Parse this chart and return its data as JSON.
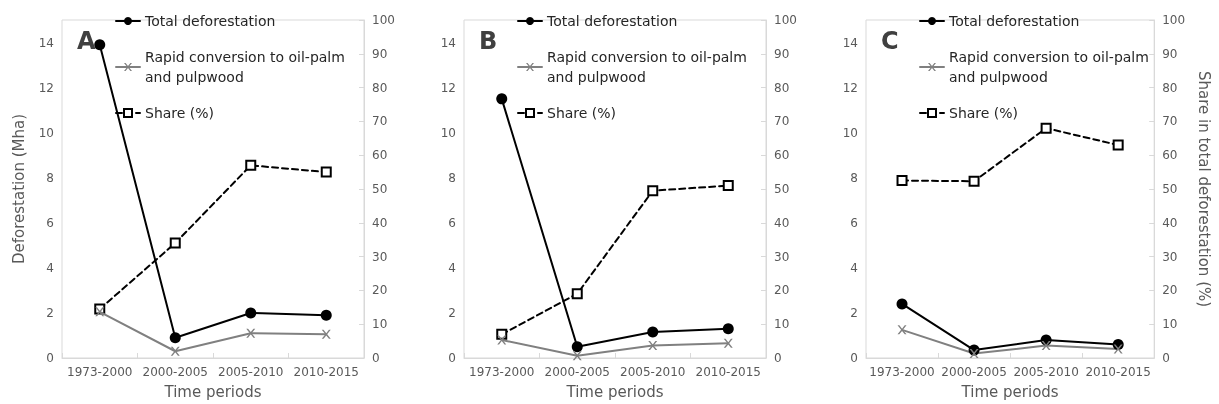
{
  "chart_data": [
    {
      "type": "line",
      "title": "A",
      "xlabel": "Time periods",
      "ylabel": "Deforestation (Mha)",
      "categories": [
        "1973-2000",
        "2000-2005",
        "2005-2010",
        "2010-2015"
      ],
      "legend": "top",
      "ylim": [
        0,
        15
      ],
      "yticks": [
        0,
        2,
        4,
        6,
        8,
        10,
        12,
        14
      ],
      "y2lim": [
        0,
        100
      ],
      "y2ticks": [
        0,
        10,
        20,
        30,
        40,
        50,
        60,
        70,
        80,
        90,
        100
      ],
      "series": [
        {
          "name": "Total deforestation",
          "color": "#000000",
          "marker": "circle",
          "line_style": "solid",
          "values": [
            13.9,
            0.9,
            2.0,
            1.9
          ]
        },
        {
          "name": "Rapid conversion to oil-palm and pulpwood",
          "color": "#808080",
          "marker": "cross",
          "line_style": "solid",
          "values": [
            2.05,
            0.3,
            1.1,
            1.05
          ]
        },
        {
          "name": "Share (%)",
          "color": "#000000",
          "marker": "square",
          "line_style": "dashed",
          "axis": "y2",
          "values": [
            14.5,
            34,
            57,
            55
          ]
        }
      ]
    },
    {
      "type": "line",
      "title": "B",
      "xlabel": "Time periods",
      "categories": [
        "1973-2000",
        "2000-2005",
        "2005-2010",
        "2010-2015"
      ],
      "legend": "top",
      "ylim": [
        0,
        15
      ],
      "yticks": [
        0,
        2,
        4,
        6,
        8,
        10,
        12,
        14
      ],
      "y2lim": [
        0,
        100
      ],
      "y2ticks": [
        0,
        10,
        20,
        30,
        40,
        50,
        60,
        70,
        80,
        90,
        100
      ],
      "series": [
        {
          "name": "Total deforestation",
          "color": "#000000",
          "marker": "circle",
          "line_style": "solid",
          "values": [
            11.5,
            0.5,
            1.15,
            1.3
          ]
        },
        {
          "name": "Rapid conversion to oil-palm and pulpwood",
          "color": "#808080",
          "marker": "cross",
          "line_style": "solid",
          "values": [
            0.8,
            0.1,
            0.55,
            0.65
          ]
        },
        {
          "name": "Share (%)",
          "color": "#000000",
          "marker": "square",
          "line_style": "dashed",
          "axis": "y2",
          "values": [
            7,
            19,
            49.5,
            51
          ]
        }
      ]
    },
    {
      "type": "line",
      "title": "C",
      "xlabel": "Time periods",
      "y2label": "Share in total deforestation (%)",
      "categories": [
        "1973-2000",
        "2000-2005",
        "2005-2010",
        "2010-2015"
      ],
      "legend": "top",
      "ylim": [
        0,
        15
      ],
      "yticks": [
        0,
        2,
        4,
        6,
        8,
        10,
        12,
        14
      ],
      "y2lim": [
        0,
        100
      ],
      "y2ticks": [
        0,
        10,
        20,
        30,
        40,
        50,
        60,
        70,
        80,
        90,
        100
      ],
      "series": [
        {
          "name": "Total deforestation",
          "color": "#000000",
          "marker": "circle",
          "line_style": "solid",
          "values": [
            2.4,
            0.35,
            0.8,
            0.6
          ]
        },
        {
          "name": "Rapid conversion to oil-palm and pulpwood",
          "color": "#808080",
          "marker": "cross",
          "line_style": "solid",
          "values": [
            1.25,
            0.2,
            0.55,
            0.4
          ]
        },
        {
          "name": "Share (%)",
          "color": "#000000",
          "marker": "square",
          "line_style": "dashed",
          "axis": "y2",
          "values": [
            52.5,
            52.3,
            68,
            63
          ]
        }
      ]
    }
  ]
}
